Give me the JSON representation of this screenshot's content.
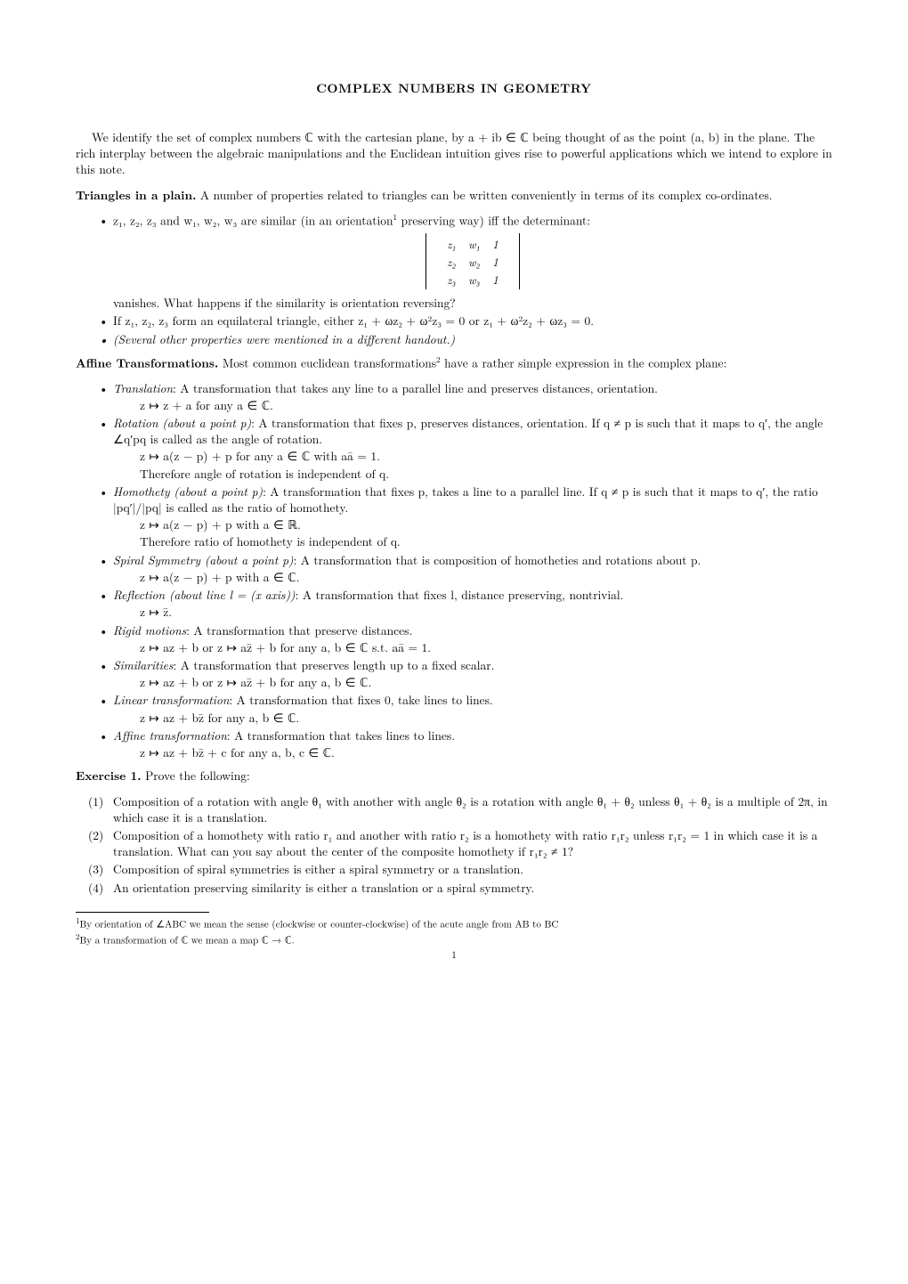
{
  "title": "COMPLEX NUMBERS IN GEOMETRY",
  "intro": "We identify the set of complex numbers ℂ with the cartesian plane, by a + ib ∈ ℂ being thought of as the point (a, b) in the plane. The rich interplay between the algebraic manipulations and the Euclidean intuition gives rise to powerful applications which we intend to explore in this note.",
  "sec1_head": "Triangles in a plain.",
  "sec1_body": " A number of properties related to triangles can be written conveniently in terms of its complex co-ordinates.",
  "sec1_b1a": "z₁, z₂, z₃ and w₁, w₂, w₃ are similar (in an orientation",
  "sec1_b1b": " preserving way) iff the determinant:",
  "sec1_b1_tail": "vanishes. What happens if the similarity is orientation reversing?",
  "sec1_b2": "If z₁, z₂, z₃ form an equilateral triangle, either z₁ + ωz₂ + ω²z₃ = 0 or z₁ + ω²z₂ + ωz₃ = 0.",
  "sec1_b3": "(Several other properties were mentioned in a different handout.)",
  "matrix": {
    "r1": [
      "z₁",
      "w₁",
      "1"
    ],
    "r2": [
      "z₂",
      "w₂",
      "1"
    ],
    "r3": [
      "z₃",
      "w₃",
      "1"
    ]
  },
  "sec2_head": "Affine Transformations.",
  "sec2_body_a": " Most common euclidean transformations",
  "sec2_body_b": " have a rather simple expression in the complex plane:",
  "tx": {
    "translation_name": "Translation",
    "translation_desc": ": A transformation that takes any line to a parallel line and preserves distances, orientation.",
    "translation_f": "z ↦ z + a for any a ∈ ℂ.",
    "rotation_name": "Rotation (about a point p)",
    "rotation_desc": ": A transformation that fixes p, preserves distances, orientation. If q ≠ p is such that it maps to q′, the angle ∠q′pq is called as the angle of rotation.",
    "rotation_f": "z ↦ a(z − p) + p for any a ∈ ℂ with aā = 1.",
    "rotation_note": "Therefore angle of rotation is independent of q.",
    "homothety_name": "Homothety (about a point p)",
    "homothety_desc": ": A transformation that fixes p, takes a line to a parallel line. If q ≠ p is such that it maps to q′, the ratio |pq′|/|pq| is called as the ratio of homothety.",
    "homothety_f": "z ↦ a(z − p) + p with a ∈ ℝ.",
    "homothety_note": "Therefore ratio of homothety is independent of q.",
    "spiral_name": "Spiral Symmetry (about a point p)",
    "spiral_desc": ": A transformation that is composition of homotheties and rotations about p.",
    "spiral_f": "z ↦ a(z − p) + p with a ∈ ℂ.",
    "reflection_name": "Reflection (about line l = (x axis))",
    "reflection_desc": ": A transformation that fixes l, distance preserving, nontrivial.",
    "reflection_f": "z ↦ z̄.",
    "rigid_name": "Rigid motions",
    "rigid_desc": ": A transformation that preserve distances.",
    "rigid_f": "z ↦ az + b or z ↦ az̄ + b for any a, b ∈ ℂ s.t. aā = 1.",
    "sim_name": "Similarities",
    "sim_desc": ": A transformation that preserves length up to a fixed scalar.",
    "sim_f": "z ↦ az + b or z ↦ az̄ + b for any a, b ∈ ℂ.",
    "lin_name": "Linear transformation",
    "lin_desc": ": A transformation that fixes 0, take lines to lines.",
    "lin_f": "z ↦ az + bz̄ for any a, b ∈ ℂ.",
    "aff_name": "Affine transformation",
    "aff_desc": ": A transformation that takes lines to lines.",
    "aff_f": "z ↦ az + bz̄ + c for any a, b, c ∈ ℂ."
  },
  "ex1_head": "Exercise 1.",
  "ex1_body": " Prove the following:",
  "ex1": {
    "i1": "Composition of a rotation with angle θ₁ with another with angle θ₂ is a rotation with angle θ₁ + θ₂ unless θ₁ + θ₂ is a multiple of 2π, in which case it is a translation.",
    "i2": "Composition of a homothety with ratio r₁ and another with ratio r₂ is a homothety with ratio r₁r₂ unless r₁r₂ = 1 in which case it is a translation. What can you say about the center of the composite homothety if r₁r₂ ≠ 1?",
    "i3": "Composition of spiral symmetries is either a spiral symmetry or a translation.",
    "i4": "An orientation preserving similarity is either a translation or a spiral symmetry."
  },
  "fn1": "By orientation of ∠ABC we mean the sense (clockwise or counter-clockwise) of the acute angle from AB to BC",
  "fn2": "By a transformation of ℂ we mean a map ℂ → ℂ.",
  "pagenum": "1",
  "sup1": "1",
  "sup2": "2"
}
